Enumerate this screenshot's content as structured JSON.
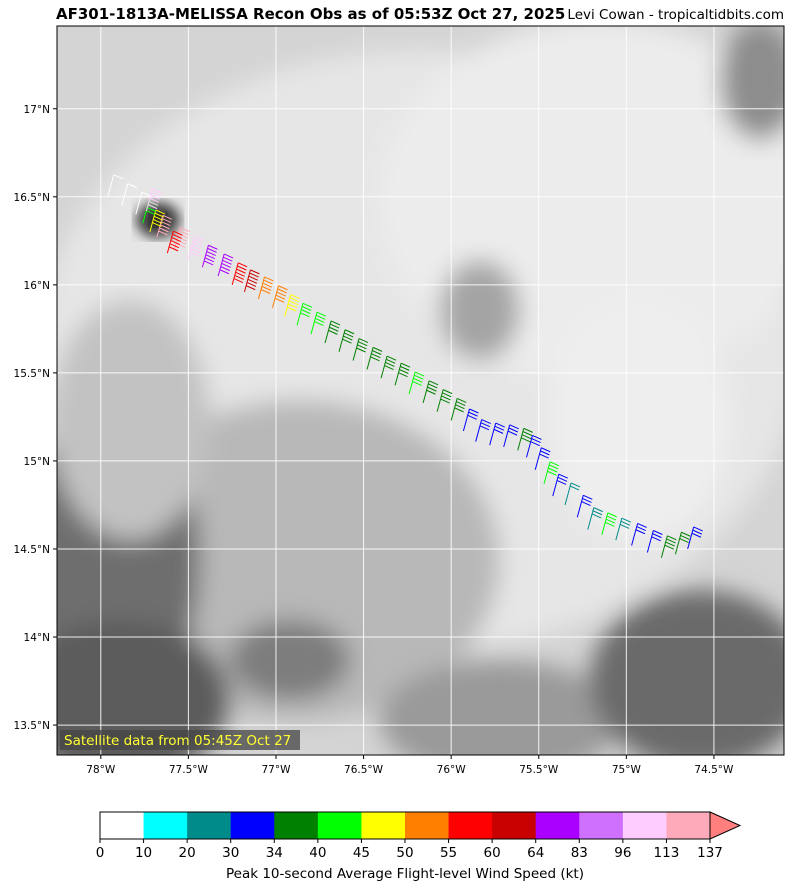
{
  "title": "AF301-1813A-MELISSA Recon Obs as of 05:53Z Oct 27, 2025",
  "credit": "Levi Cowan - tropicaltidbits.com",
  "satellite_label": "Satellite data from 05:45Z Oct 27",
  "map": {
    "lon_range": [
      -78.25,
      -74.1
    ],
    "lat_range": [
      13.33,
      17.47
    ],
    "lon_ticks": [
      {
        "value": -78.0,
        "label": "78°W"
      },
      {
        "value": -77.5,
        "label": "77.5°W"
      },
      {
        "value": -77.0,
        "label": "77°W"
      },
      {
        "value": -76.5,
        "label": "76.5°W"
      },
      {
        "value": -76.0,
        "label": "76°W"
      },
      {
        "value": -75.5,
        "label": "75.5°W"
      },
      {
        "value": -75.0,
        "label": "75°W"
      },
      {
        "value": -74.5,
        "label": "74.5°W"
      }
    ],
    "lat_ticks": [
      {
        "value": 13.5,
        "label": "13.5°N"
      },
      {
        "value": 14.0,
        "label": "14°N"
      },
      {
        "value": 14.5,
        "label": "14.5°N"
      },
      {
        "value": 15.0,
        "label": "15°N"
      },
      {
        "value": 15.5,
        "label": "15.5°N"
      },
      {
        "value": 16.0,
        "label": "16°N"
      },
      {
        "value": 16.5,
        "label": "16.5°N"
      },
      {
        "value": 17.0,
        "label": "17°N"
      }
    ],
    "grid": true,
    "background": "grayscale infrared satellite imagery"
  },
  "colorbar": {
    "label": "Peak 10-second Average Flight-level Wind Speed (kt)",
    "ticks": [
      "0",
      "10",
      "20",
      "30",
      "34",
      "40",
      "45",
      "50",
      "55",
      "60",
      "64",
      "83",
      "96",
      "113",
      "137"
    ],
    "colors": [
      "#ffffff",
      "#00ffff",
      "#008b8b",
      "#0000ff",
      "#008000",
      "#00ff00",
      "#ffff00",
      "#ff7f00",
      "#ff0000",
      "#c80000",
      "#aa00ff",
      "#d070ff",
      "#ffccff",
      "#ffaabb"
    ],
    "extend_color": "#ff7f7f"
  },
  "chart_data": {
    "type": "scatter",
    "title": "AF301-1813A-MELISSA Recon Obs as of 05:53Z Oct 27, 2025",
    "xlabel": "",
    "ylabel": "",
    "xlim": [
      -78.25,
      -74.1
    ],
    "ylim": [
      13.33,
      17.47
    ],
    "series": [
      {
        "name": "Peak 10-second Average Flight-level Wind Speed (kt)",
        "points": [
          {
            "lon": -74.65,
            "lat": 14.5,
            "kt": 32
          },
          {
            "lon": -74.72,
            "lat": 14.47,
            "kt": 34
          },
          {
            "lon": -74.8,
            "lat": 14.45,
            "kt": 36
          },
          {
            "lon": -74.88,
            "lat": 14.48,
            "kt": 32
          },
          {
            "lon": -74.97,
            "lat": 14.52,
            "kt": 30
          },
          {
            "lon": -75.06,
            "lat": 14.55,
            "kt": 26
          },
          {
            "lon": -75.14,
            "lat": 14.58,
            "kt": 42
          },
          {
            "lon": -75.22,
            "lat": 14.61,
            "kt": 28
          },
          {
            "lon": -75.28,
            "lat": 14.68,
            "kt": 31
          },
          {
            "lon": -75.35,
            "lat": 14.75,
            "kt": 24
          },
          {
            "lon": -75.42,
            "lat": 14.8,
            "kt": 32
          },
          {
            "lon": -75.47,
            "lat": 14.87,
            "kt": 40
          },
          {
            "lon": -75.52,
            "lat": 14.95,
            "kt": 30
          },
          {
            "lon": -75.57,
            "lat": 15.02,
            "kt": 32
          },
          {
            "lon": -75.62,
            "lat": 15.06,
            "kt": 36
          },
          {
            "lon": -75.7,
            "lat": 15.08,
            "kt": 30
          },
          {
            "lon": -75.78,
            "lat": 15.09,
            "kt": 32
          },
          {
            "lon": -75.86,
            "lat": 15.11,
            "kt": 30
          },
          {
            "lon": -75.93,
            "lat": 15.17,
            "kt": 32
          },
          {
            "lon": -76.0,
            "lat": 15.23,
            "kt": 36
          },
          {
            "lon": -76.08,
            "lat": 15.28,
            "kt": 38
          },
          {
            "lon": -76.16,
            "lat": 15.33,
            "kt": 36
          },
          {
            "lon": -76.24,
            "lat": 15.38,
            "kt": 42
          },
          {
            "lon": -76.32,
            "lat": 15.43,
            "kt": 36
          },
          {
            "lon": -76.4,
            "lat": 15.47,
            "kt": 37
          },
          {
            "lon": -76.48,
            "lat": 15.52,
            "kt": 36
          },
          {
            "lon": -76.56,
            "lat": 15.57,
            "kt": 37
          },
          {
            "lon": -76.64,
            "lat": 15.62,
            "kt": 36
          },
          {
            "lon": -76.72,
            "lat": 15.67,
            "kt": 38
          },
          {
            "lon": -76.8,
            "lat": 15.72,
            "kt": 42
          },
          {
            "lon": -76.88,
            "lat": 15.77,
            "kt": 43
          },
          {
            "lon": -76.95,
            "lat": 15.82,
            "kt": 48
          },
          {
            "lon": -77.02,
            "lat": 15.87,
            "kt": 52
          },
          {
            "lon": -77.1,
            "lat": 15.92,
            "kt": 53
          },
          {
            "lon": -77.18,
            "lat": 15.96,
            "kt": 62
          },
          {
            "lon": -77.25,
            "lat": 16.0,
            "kt": 58
          },
          {
            "lon": -77.33,
            "lat": 16.05,
            "kt": 65
          },
          {
            "lon": -77.42,
            "lat": 16.1,
            "kt": 80
          },
          {
            "lon": -77.5,
            "lat": 16.15,
            "kt": 98
          },
          {
            "lon": -77.58,
            "lat": 16.2,
            "kt": 120
          },
          {
            "lon": -77.62,
            "lat": 16.18,
            "kt": 58
          },
          {
            "lon": -77.68,
            "lat": 16.27,
            "kt": 130
          },
          {
            "lon": -77.72,
            "lat": 16.3,
            "kt": 48
          },
          {
            "lon": -77.76,
            "lat": 16.35,
            "kt": 42
          },
          {
            "lon": -77.74,
            "lat": 16.42,
            "kt": 100
          },
          {
            "lon": -77.8,
            "lat": 16.4,
            "kt": 5
          },
          {
            "lon": -77.88,
            "lat": 16.45,
            "kt": 8
          },
          {
            "lon": -77.96,
            "lat": 16.5,
            "kt": 6
          }
        ]
      }
    ]
  }
}
